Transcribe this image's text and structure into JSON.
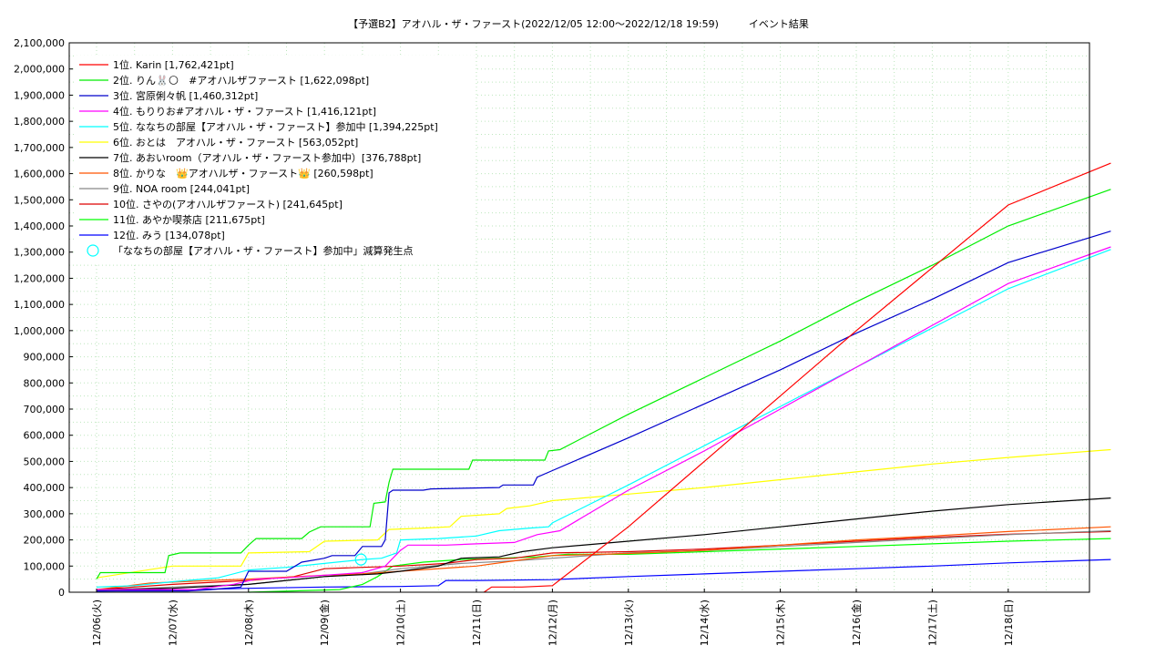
{
  "chart_data": {
    "type": "line",
    "title": "【予選B2】アオハル・ザ・ファースト(2022/12/05 12:00〜2022/12/18 19:59)　　　イベント結果",
    "xlabel": "",
    "ylabel": "",
    "ylim": [
      0,
      2100000
    ],
    "xlim": [
      0,
      13.35
    ],
    "x_ticks": [
      {
        "x": 0,
        "label": "12/06(火)"
      },
      {
        "x": 1,
        "label": "12/07(水)"
      },
      {
        "x": 2,
        "label": "12/08(木)"
      },
      {
        "x": 3,
        "label": "12/09(金)"
      },
      {
        "x": 4,
        "label": "12/10(土)"
      },
      {
        "x": 5,
        "label": "12/11(日)"
      },
      {
        "x": 6,
        "label": "12/12(月)"
      },
      {
        "x": 7,
        "label": "12/13(火)"
      },
      {
        "x": 8,
        "label": "12/14(水)"
      },
      {
        "x": 9,
        "label": "12/15(木)"
      },
      {
        "x": 10,
        "label": "12/16(金)"
      },
      {
        "x": 11,
        "label": "12/17(土)"
      },
      {
        "x": 12,
        "label": "12/18(日)"
      }
    ],
    "y_ticks": [
      {
        "y": 0,
        "label": "0"
      },
      {
        "y": 100000,
        "label": "100,000"
      },
      {
        "y": 200000,
        "label": "200,000"
      },
      {
        "y": 300000,
        "label": "300,000"
      },
      {
        "y": 400000,
        "label": "400,000"
      },
      {
        "y": 500000,
        "label": "500,000"
      },
      {
        "y": 600000,
        "label": "600,000"
      },
      {
        "y": 700000,
        "label": "700,000"
      },
      {
        "y": 800000,
        "label": "800,000"
      },
      {
        "y": 900000,
        "label": "900,000"
      },
      {
        "y": 1000000,
        "label": "1,000,000"
      },
      {
        "y": 1100000,
        "label": "1,100,000"
      },
      {
        "y": 1200000,
        "label": "1,200,000"
      },
      {
        "y": 1300000,
        "label": "1,300,000"
      },
      {
        "y": 1400000,
        "label": "1,400,000"
      },
      {
        "y": 1500000,
        "label": "1,500,000"
      },
      {
        "y": 1600000,
        "label": "1,600,000"
      },
      {
        "y": 1700000,
        "label": "1,700,000"
      },
      {
        "y": 1800000,
        "label": "1,800,000"
      },
      {
        "y": 1900000,
        "label": "1,900,000"
      },
      {
        "y": 2000000,
        "label": "2,000,000"
      },
      {
        "y": 2100000,
        "label": "2,100,000"
      }
    ],
    "grid": true,
    "legend_position": "top-left",
    "series": [
      {
        "name": "1位. Karin [1,762,421pt]",
        "color": "#ff0000",
        "points": [
          [
            5.1,
            0
          ],
          [
            5.2,
            20000
          ],
          [
            5.6,
            20000
          ],
          [
            6.0,
            25000
          ],
          [
            7.0,
            250000
          ],
          [
            8.0,
            500000
          ],
          [
            9.0,
            750000
          ],
          [
            10.0,
            1000000
          ],
          [
            11.0,
            1240000
          ],
          [
            12.0,
            1480000
          ],
          [
            13.35,
            1640000
          ]
        ]
      },
      {
        "name": "2位. りん🐰🌕　#アオハルザファースト [1,622,098pt]",
        "color": "#00ee00",
        "points": [
          [
            0,
            50000
          ],
          [
            0.05,
            75000
          ],
          [
            0.9,
            75000
          ],
          [
            0.95,
            140000
          ],
          [
            1.1,
            150000
          ],
          [
            1.9,
            150000
          ],
          [
            2.0,
            180000
          ],
          [
            2.1,
            205000
          ],
          [
            2.7,
            205000
          ],
          [
            2.8,
            230000
          ],
          [
            2.95,
            250000
          ],
          [
            3.6,
            250000
          ],
          [
            3.65,
            340000
          ],
          [
            3.8,
            345000
          ],
          [
            3.85,
            420000
          ],
          [
            3.9,
            470000
          ],
          [
            4.9,
            470000
          ],
          [
            4.95,
            505000
          ],
          [
            5.9,
            505000
          ],
          [
            5.95,
            540000
          ],
          [
            6.1,
            545000
          ],
          [
            7.0,
            680000
          ],
          [
            8.0,
            820000
          ],
          [
            9.0,
            960000
          ],
          [
            10.0,
            1110000
          ],
          [
            11.0,
            1250000
          ],
          [
            12.0,
            1400000
          ],
          [
            13.35,
            1540000
          ]
        ]
      },
      {
        "name": "3位. 宮原俐々帆 [1,460,312pt]",
        "color": "#0000cc",
        "points": [
          [
            0,
            5000
          ],
          [
            1.2,
            5000
          ],
          [
            1.5,
            10000
          ],
          [
            1.9,
            20000
          ],
          [
            2.0,
            80000
          ],
          [
            2.5,
            80000
          ],
          [
            2.7,
            115000
          ],
          [
            3.0,
            130000
          ],
          [
            3.1,
            140000
          ],
          [
            3.4,
            140000
          ],
          [
            3.5,
            175000
          ],
          [
            3.75,
            175000
          ],
          [
            3.8,
            200000
          ],
          [
            3.85,
            380000
          ],
          [
            3.9,
            390000
          ],
          [
            4.3,
            390000
          ],
          [
            4.4,
            395000
          ],
          [
            5.3,
            400000
          ],
          [
            5.35,
            410000
          ],
          [
            5.75,
            410000
          ],
          [
            5.8,
            440000
          ],
          [
            6.0,
            465000
          ],
          [
            7.0,
            590000
          ],
          [
            8.0,
            720000
          ],
          [
            9.0,
            850000
          ],
          [
            10.0,
            990000
          ],
          [
            11.0,
            1120000
          ],
          [
            12.0,
            1260000
          ],
          [
            13.35,
            1380000
          ]
        ]
      },
      {
        "name": "4位. もりりお#アオハル・ザ・ファースト [1,416,121pt]",
        "color": "#ff00ff",
        "points": [
          [
            0,
            10000
          ],
          [
            1.3,
            10000
          ],
          [
            1.8,
            30000
          ],
          [
            2.1,
            50000
          ],
          [
            2.5,
            55000
          ],
          [
            3.0,
            65000
          ],
          [
            3.5,
            75000
          ],
          [
            3.8,
            100000
          ],
          [
            4.0,
            160000
          ],
          [
            4.1,
            180000
          ],
          [
            4.6,
            180000
          ],
          [
            5.0,
            185000
          ],
          [
            5.5,
            190000
          ],
          [
            5.8,
            220000
          ],
          [
            6.1,
            235000
          ],
          [
            7.0,
            390000
          ],
          [
            8.0,
            540000
          ],
          [
            9.0,
            700000
          ],
          [
            10.0,
            860000
          ],
          [
            11.0,
            1020000
          ],
          [
            12.0,
            1180000
          ],
          [
            13.35,
            1320000
          ]
        ]
      },
      {
        "name": "5位. ななちの部屋【アオハル・ザ・ファースト】参加中 [1,394,225pt]",
        "color": "#00ffff",
        "points": [
          [
            0,
            20000
          ],
          [
            0.5,
            25000
          ],
          [
            1.0,
            40000
          ],
          [
            1.6,
            55000
          ],
          [
            2.0,
            85000
          ],
          [
            2.5,
            95000
          ],
          [
            3.0,
            110000
          ],
          [
            3.5,
            125000
          ],
          [
            3.75,
            130000
          ],
          [
            3.95,
            150000
          ],
          [
            4.0,
            200000
          ],
          [
            4.5,
            205000
          ],
          [
            5.0,
            215000
          ],
          [
            5.3,
            235000
          ],
          [
            5.7,
            245000
          ],
          [
            5.95,
            250000
          ],
          [
            6.0,
            265000
          ],
          [
            7.0,
            410000
          ],
          [
            8.0,
            560000
          ],
          [
            9.0,
            710000
          ],
          [
            10.0,
            860000
          ],
          [
            11.0,
            1010000
          ],
          [
            12.0,
            1160000
          ],
          [
            13.35,
            1310000
          ]
        ]
      },
      {
        "name": "6位. おとは　アオハル・ザ・ファースト [563,052pt]",
        "color": "#ffff00",
        "points": [
          [
            0,
            55000
          ],
          [
            1.0,
            100000
          ],
          [
            1.9,
            100000
          ],
          [
            2.0,
            150000
          ],
          [
            2.8,
            155000
          ],
          [
            3.0,
            195000
          ],
          [
            3.7,
            200000
          ],
          [
            3.85,
            240000
          ],
          [
            4.3,
            245000
          ],
          [
            4.65,
            250000
          ],
          [
            4.8,
            290000
          ],
          [
            5.3,
            300000
          ],
          [
            5.4,
            320000
          ],
          [
            5.7,
            330000
          ],
          [
            6.0,
            350000
          ],
          [
            7.0,
            375000
          ],
          [
            8.0,
            400000
          ],
          [
            9.0,
            430000
          ],
          [
            10.0,
            460000
          ],
          [
            11.0,
            490000
          ],
          [
            12.0,
            515000
          ],
          [
            13.35,
            545000
          ]
        ]
      },
      {
        "name": "7位. あおいroom（アオハル・ザ・ファースト参加中）[376,788pt]",
        "color": "#000000",
        "points": [
          [
            0,
            10000
          ],
          [
            1.0,
            15000
          ],
          [
            2.0,
            30000
          ],
          [
            3.0,
            60000
          ],
          [
            3.7,
            70000
          ],
          [
            4.0,
            80000
          ],
          [
            4.5,
            100000
          ],
          [
            4.8,
            130000
          ],
          [
            5.3,
            135000
          ],
          [
            5.6,
            155000
          ],
          [
            6.0,
            170000
          ],
          [
            7.0,
            195000
          ],
          [
            8.0,
            220000
          ],
          [
            9.0,
            250000
          ],
          [
            10.0,
            280000
          ],
          [
            11.0,
            310000
          ],
          [
            12.0,
            335000
          ],
          [
            13.35,
            360000
          ]
        ]
      },
      {
        "name": "8位. かりな　👑アオハルザ・ファースト👑 [260,598pt]",
        "color": "#ff5500",
        "points": [
          [
            0,
            10000
          ],
          [
            0.7,
            35000
          ],
          [
            1.5,
            45000
          ],
          [
            2.0,
            50000
          ],
          [
            3.0,
            65000
          ],
          [
            3.5,
            70000
          ],
          [
            4.0,
            80000
          ],
          [
            5.0,
            100000
          ],
          [
            5.5,
            120000
          ],
          [
            6.0,
            140000
          ],
          [
            7.0,
            148000
          ],
          [
            8.0,
            160000
          ],
          [
            9.0,
            180000
          ],
          [
            10.0,
            200000
          ],
          [
            11.0,
            215000
          ],
          [
            12.0,
            232000
          ],
          [
            13.35,
            250000
          ]
        ]
      },
      {
        "name": "9位. NOA room [244,041pt]",
        "color": "#888888",
        "points": [
          [
            0,
            5000
          ],
          [
            1.0,
            20000
          ],
          [
            2.0,
            30000
          ],
          [
            3.0,
            60000
          ],
          [
            3.5,
            70000
          ],
          [
            4.0,
            90000
          ],
          [
            4.8,
            110000
          ],
          [
            5.5,
            120000
          ],
          [
            6.0,
            130000
          ],
          [
            7.0,
            150000
          ],
          [
            8.0,
            160000
          ],
          [
            9.0,
            175000
          ],
          [
            10.0,
            190000
          ],
          [
            11.0,
            205000
          ],
          [
            12.0,
            220000
          ],
          [
            13.35,
            235000
          ]
        ]
      },
      {
        "name": "10位. さやの(アオハルザファースト) [241,645pt]",
        "color": "#dd0000",
        "points": [
          [
            0,
            10000
          ],
          [
            1.0,
            30000
          ],
          [
            2.0,
            45000
          ],
          [
            2.6,
            60000
          ],
          [
            3.0,
            90000
          ],
          [
            3.5,
            95000
          ],
          [
            4.0,
            100000
          ],
          [
            4.6,
            110000
          ],
          [
            5.0,
            125000
          ],
          [
            5.5,
            130000
          ],
          [
            6.0,
            150000
          ],
          [
            7.0,
            155000
          ],
          [
            8.0,
            165000
          ],
          [
            9.0,
            180000
          ],
          [
            10.0,
            195000
          ],
          [
            11.0,
            210000
          ],
          [
            12.0,
            222000
          ],
          [
            13.35,
            232000
          ]
        ]
      },
      {
        "name": "11位. あやか喫茶店 [211,675pt]",
        "color": "#00ff00",
        "points": [
          [
            2.0,
            0
          ],
          [
            3.2,
            10000
          ],
          [
            3.5,
            30000
          ],
          [
            3.7,
            60000
          ],
          [
            3.9,
            100000
          ],
          [
            4.3,
            115000
          ],
          [
            4.8,
            125000
          ],
          [
            5.3,
            130000
          ],
          [
            5.8,
            135000
          ],
          [
            6.2,
            145000
          ],
          [
            7.0,
            145000
          ],
          [
            8.0,
            155000
          ],
          [
            9.0,
            165000
          ],
          [
            10.0,
            175000
          ],
          [
            11.0,
            185000
          ],
          [
            12.0,
            195000
          ],
          [
            13.35,
            205000
          ]
        ]
      },
      {
        "name": "12位. みう [134,078pt]",
        "color": "#0000ff",
        "points": [
          [
            0,
            5000
          ],
          [
            1.0,
            8000
          ],
          [
            2.0,
            15000
          ],
          [
            3.0,
            20000
          ],
          [
            4.0,
            22000
          ],
          [
            4.5,
            25000
          ],
          [
            4.6,
            45000
          ],
          [
            5.0,
            45000
          ],
          [
            6.0,
            48000
          ],
          [
            7.0,
            60000
          ],
          [
            8.0,
            70000
          ],
          [
            9.0,
            80000
          ],
          [
            10.0,
            90000
          ],
          [
            11.0,
            100000
          ],
          [
            12.0,
            112000
          ],
          [
            13.35,
            125000
          ]
        ]
      }
    ],
    "markers": {
      "name": "「ななちの部屋【アオハル・ザ・ファースト】参加中」減算発生点",
      "color": "#00ffff",
      "points": [
        [
          3.48,
          125000
        ]
      ]
    }
  }
}
